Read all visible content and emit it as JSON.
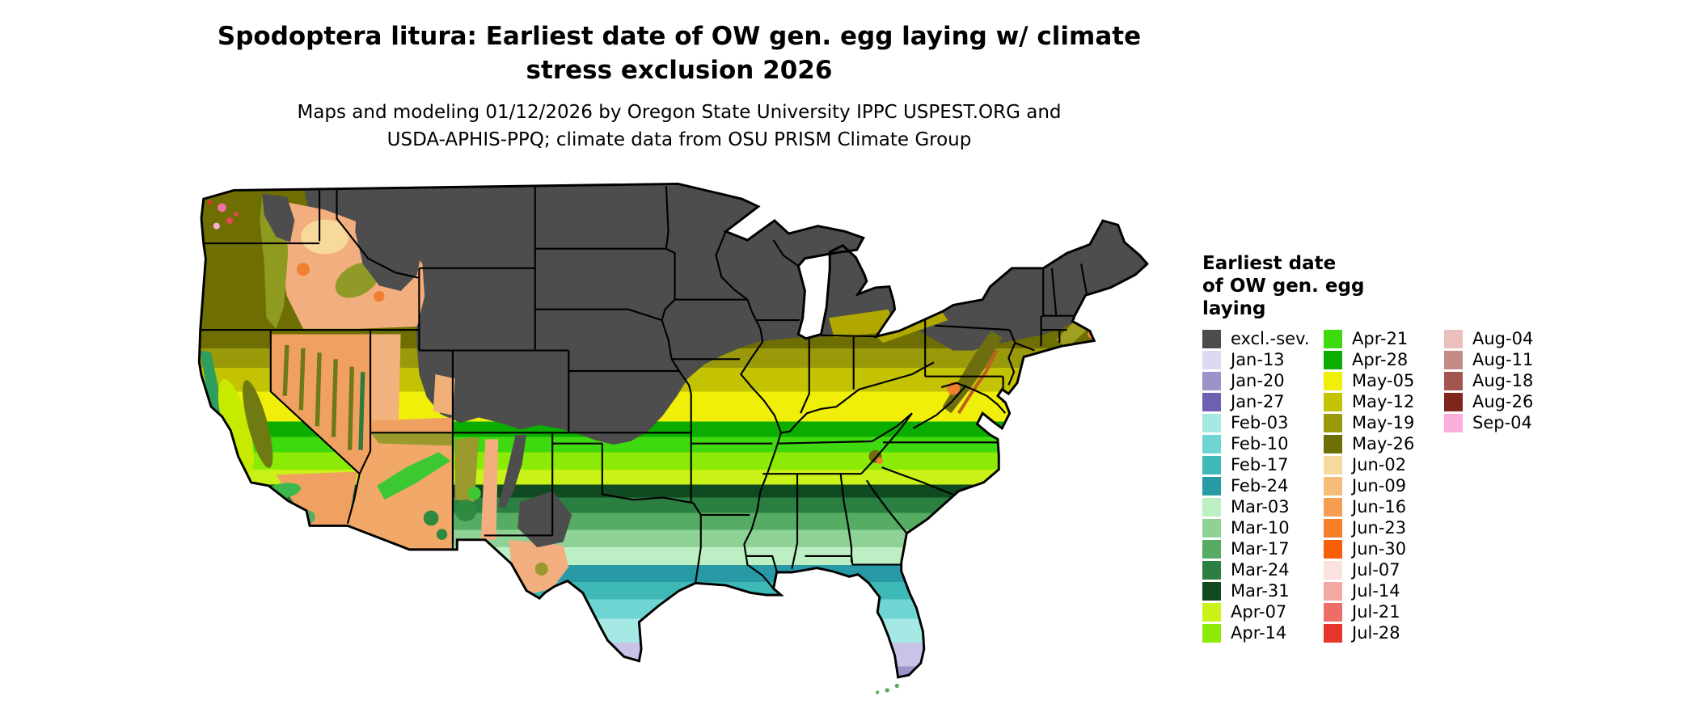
{
  "title": {
    "line1": "Spodoptera litura: Earliest date of OW gen. egg laying w/ climate",
    "line2": "stress exclusion 2026"
  },
  "subtitle": {
    "line1": "Maps and modeling 01/12/2026 by Oregon State University IPPC USPEST.ORG and",
    "line2": "USDA-APHIS-PPQ; climate data from OSU PRISM Climate Group"
  },
  "legend": {
    "title_line1": "Earliest date",
    "title_line2": "of OW gen. egg",
    "title_line3": "laying",
    "columns": [
      [
        {
          "label": "excl.-sev.",
          "color": "#4D4D4D"
        },
        {
          "label": "Jan-13",
          "color": "#DED9F0"
        },
        {
          "label": "Jan-20",
          "color": "#9B93C9"
        },
        {
          "label": "Jan-27",
          "color": "#6F5FB0"
        },
        {
          "label": "Feb-03",
          "color": "#A6E8E3"
        },
        {
          "label": "Feb-10",
          "color": "#6FD5D2"
        },
        {
          "label": "Feb-17",
          "color": "#3FB8B8"
        },
        {
          "label": "Feb-24",
          "color": "#279AA6"
        },
        {
          "label": "Mar-03",
          "color": "#BCEFC4"
        },
        {
          "label": "Mar-10",
          "color": "#8ED296"
        },
        {
          "label": "Mar-17",
          "color": "#55AC62"
        },
        {
          "label": "Mar-24",
          "color": "#2B7F41"
        },
        {
          "label": "Mar-31",
          "color": "#0F4A21"
        },
        {
          "label": "Apr-07",
          "color": "#C9F318"
        },
        {
          "label": "Apr-14",
          "color": "#8BEB07"
        }
      ],
      [
        {
          "label": "Apr-21",
          "color": "#3FD90F"
        },
        {
          "label": "Apr-28",
          "color": "#0BAD00"
        },
        {
          "label": "May-05",
          "color": "#EFEF0A"
        },
        {
          "label": "May-12",
          "color": "#C3C304"
        },
        {
          "label": "May-19",
          "color": "#99990A"
        },
        {
          "label": "May-26",
          "color": "#6E6E02"
        },
        {
          "label": "Jun-02",
          "color": "#F8D99C"
        },
        {
          "label": "Jun-09",
          "color": "#F7BC77"
        },
        {
          "label": "Jun-16",
          "color": "#F79D51"
        },
        {
          "label": "Jun-23",
          "color": "#F77E28"
        },
        {
          "label": "Jun-30",
          "color": "#F75E07"
        },
        {
          "label": "Jul-07",
          "color": "#FAE3DE"
        },
        {
          "label": "Jul-14",
          "color": "#F3A8A2"
        },
        {
          "label": "Jul-21",
          "color": "#EC6E66"
        },
        {
          "label": "Jul-28",
          "color": "#E6352B"
        }
      ],
      [
        {
          "label": "Aug-04",
          "color": "#E9C0BC"
        },
        {
          "label": "Aug-11",
          "color": "#C58B84"
        },
        {
          "label": "Aug-18",
          "color": "#A1574E"
        },
        {
          "label": "Aug-26",
          "color": "#7E251C"
        },
        {
          "label": "Sep-04",
          "color": "#FBAED9"
        }
      ]
    ]
  }
}
